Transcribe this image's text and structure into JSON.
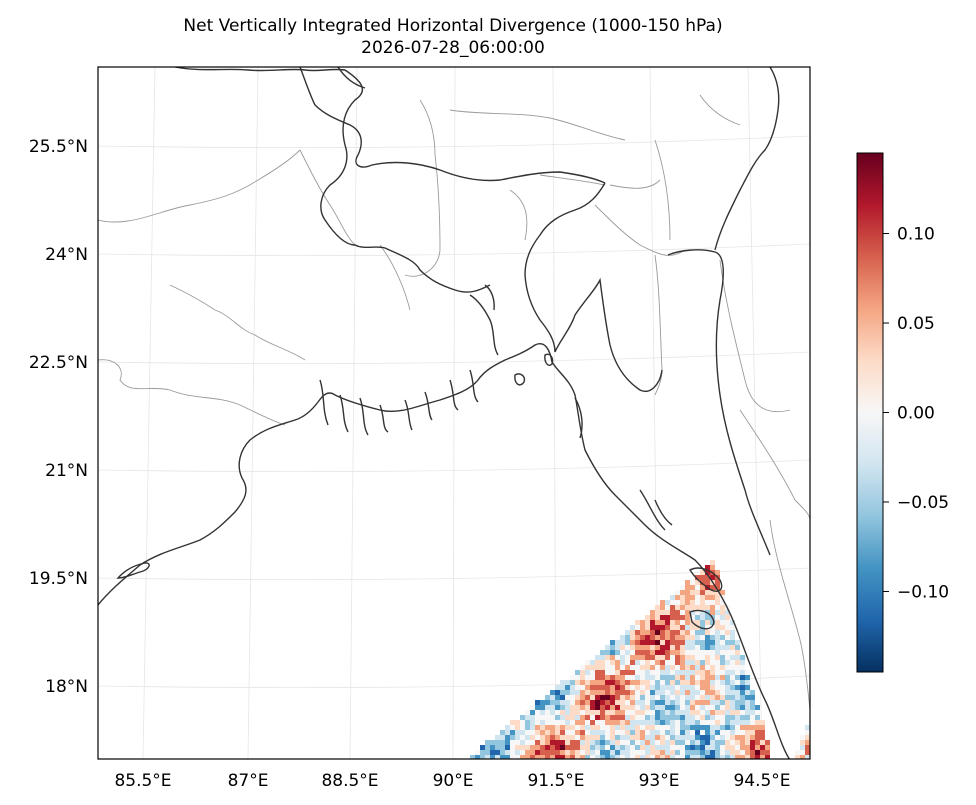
{
  "title": {
    "line1": "Net Vertically Integrated Horizontal Divergence (1000-150 hPa)",
    "line2": "2026-07-28_06:00:00"
  },
  "axes": {
    "lon_ticks": [
      "85.5°E",
      "87°E",
      "88.5°E",
      "90°E",
      "91.5°E",
      "93°E",
      "94.5°E"
    ],
    "lat_ticks": [
      "25.5°N",
      "24°N",
      "22.5°N",
      "21°N",
      "19.5°N",
      "18°N"
    ],
    "lon_range": [
      84.8,
      94.8
    ],
    "lat_range": [
      17.0,
      26.6
    ]
  },
  "colorbar": {
    "colormap": "RdBu_r",
    "vmin": -0.145,
    "vmax": 0.145,
    "tick_labels": [
      "0.10",
      "0.05",
      "0.00",
      "−0.05",
      "−0.10"
    ],
    "tick_values": [
      0.1,
      0.05,
      0.0,
      -0.05,
      -0.1
    ],
    "colors": [
      "#053061",
      "#2166ac",
      "#4393c3",
      "#92c5de",
      "#d1e5f0",
      "#f7f7f7",
      "#fddbc7",
      "#f4a582",
      "#d6604d",
      "#b2182b",
      "#67001f"
    ]
  },
  "map": {
    "coastline_color": "#333333",
    "border_color": "#9a9a9a",
    "gridline_color": "#e6e6e6",
    "field_region": "Bay of Bengal south-east (92–95°E, 17–20.5°N)"
  }
}
